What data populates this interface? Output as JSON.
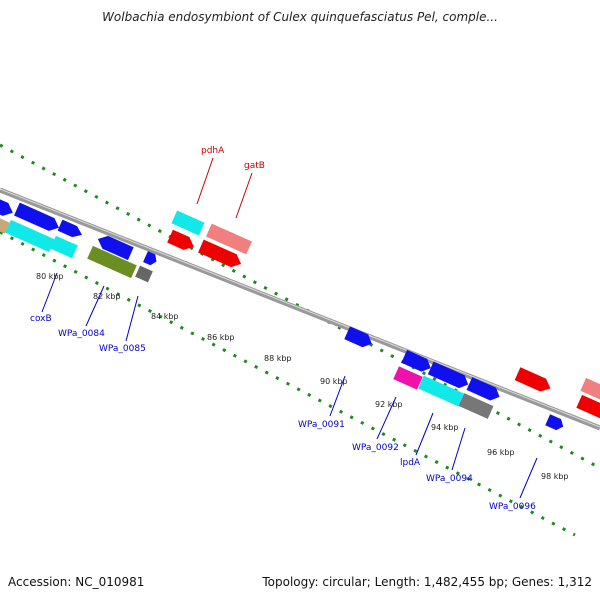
{
  "title": "Wolbachia endosymbiont of Culex quinquefasciatus Pel, comple...",
  "footer": {
    "accession": "Accession: NC_010981",
    "topology": "Topology: circular; Length: 1,482,455 bp; Genes: 1,312"
  },
  "colors": {
    "backbone": "#888888",
    "ticks": "#1e8a1e",
    "label_top": "#cc0000",
    "label_bottom": "#0000cc"
  },
  "kbp_ticks": [
    "80 kbp",
    "82 kbp",
    "84 kbp",
    "86 kbp",
    "88 kbp",
    "90 kbp",
    "92 kbp",
    "94 kbp",
    "96 kbp",
    "98 kbp"
  ],
  "gene_labels": {
    "top": [
      "pdhA",
      "gatB"
    ],
    "bottom": [
      "coxB",
      "WPa_0084",
      "WPa_0085",
      "WPa_0091",
      "WPa_0092",
      "lpdA",
      "WPa_0094",
      "WPa_0096"
    ]
  }
}
